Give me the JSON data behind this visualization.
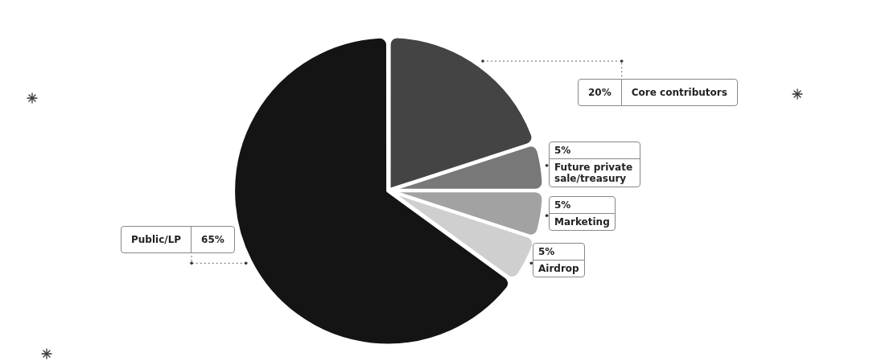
{
  "chart_data": {
    "type": "pie",
    "categories": [
      "Core contributors",
      "Future private sale/treasury",
      "Marketing",
      "Airdrop",
      "Public/LP"
    ],
    "values": [
      20,
      5,
      5,
      5,
      65
    ],
    "value_labels": [
      "20%",
      "5%",
      "5%",
      "5%",
      "65%"
    ],
    "colors": [
      "#444444",
      "#787878",
      "#a2a2a2",
      "#cfcfcf",
      "#141414"
    ],
    "legend": false
  }
}
